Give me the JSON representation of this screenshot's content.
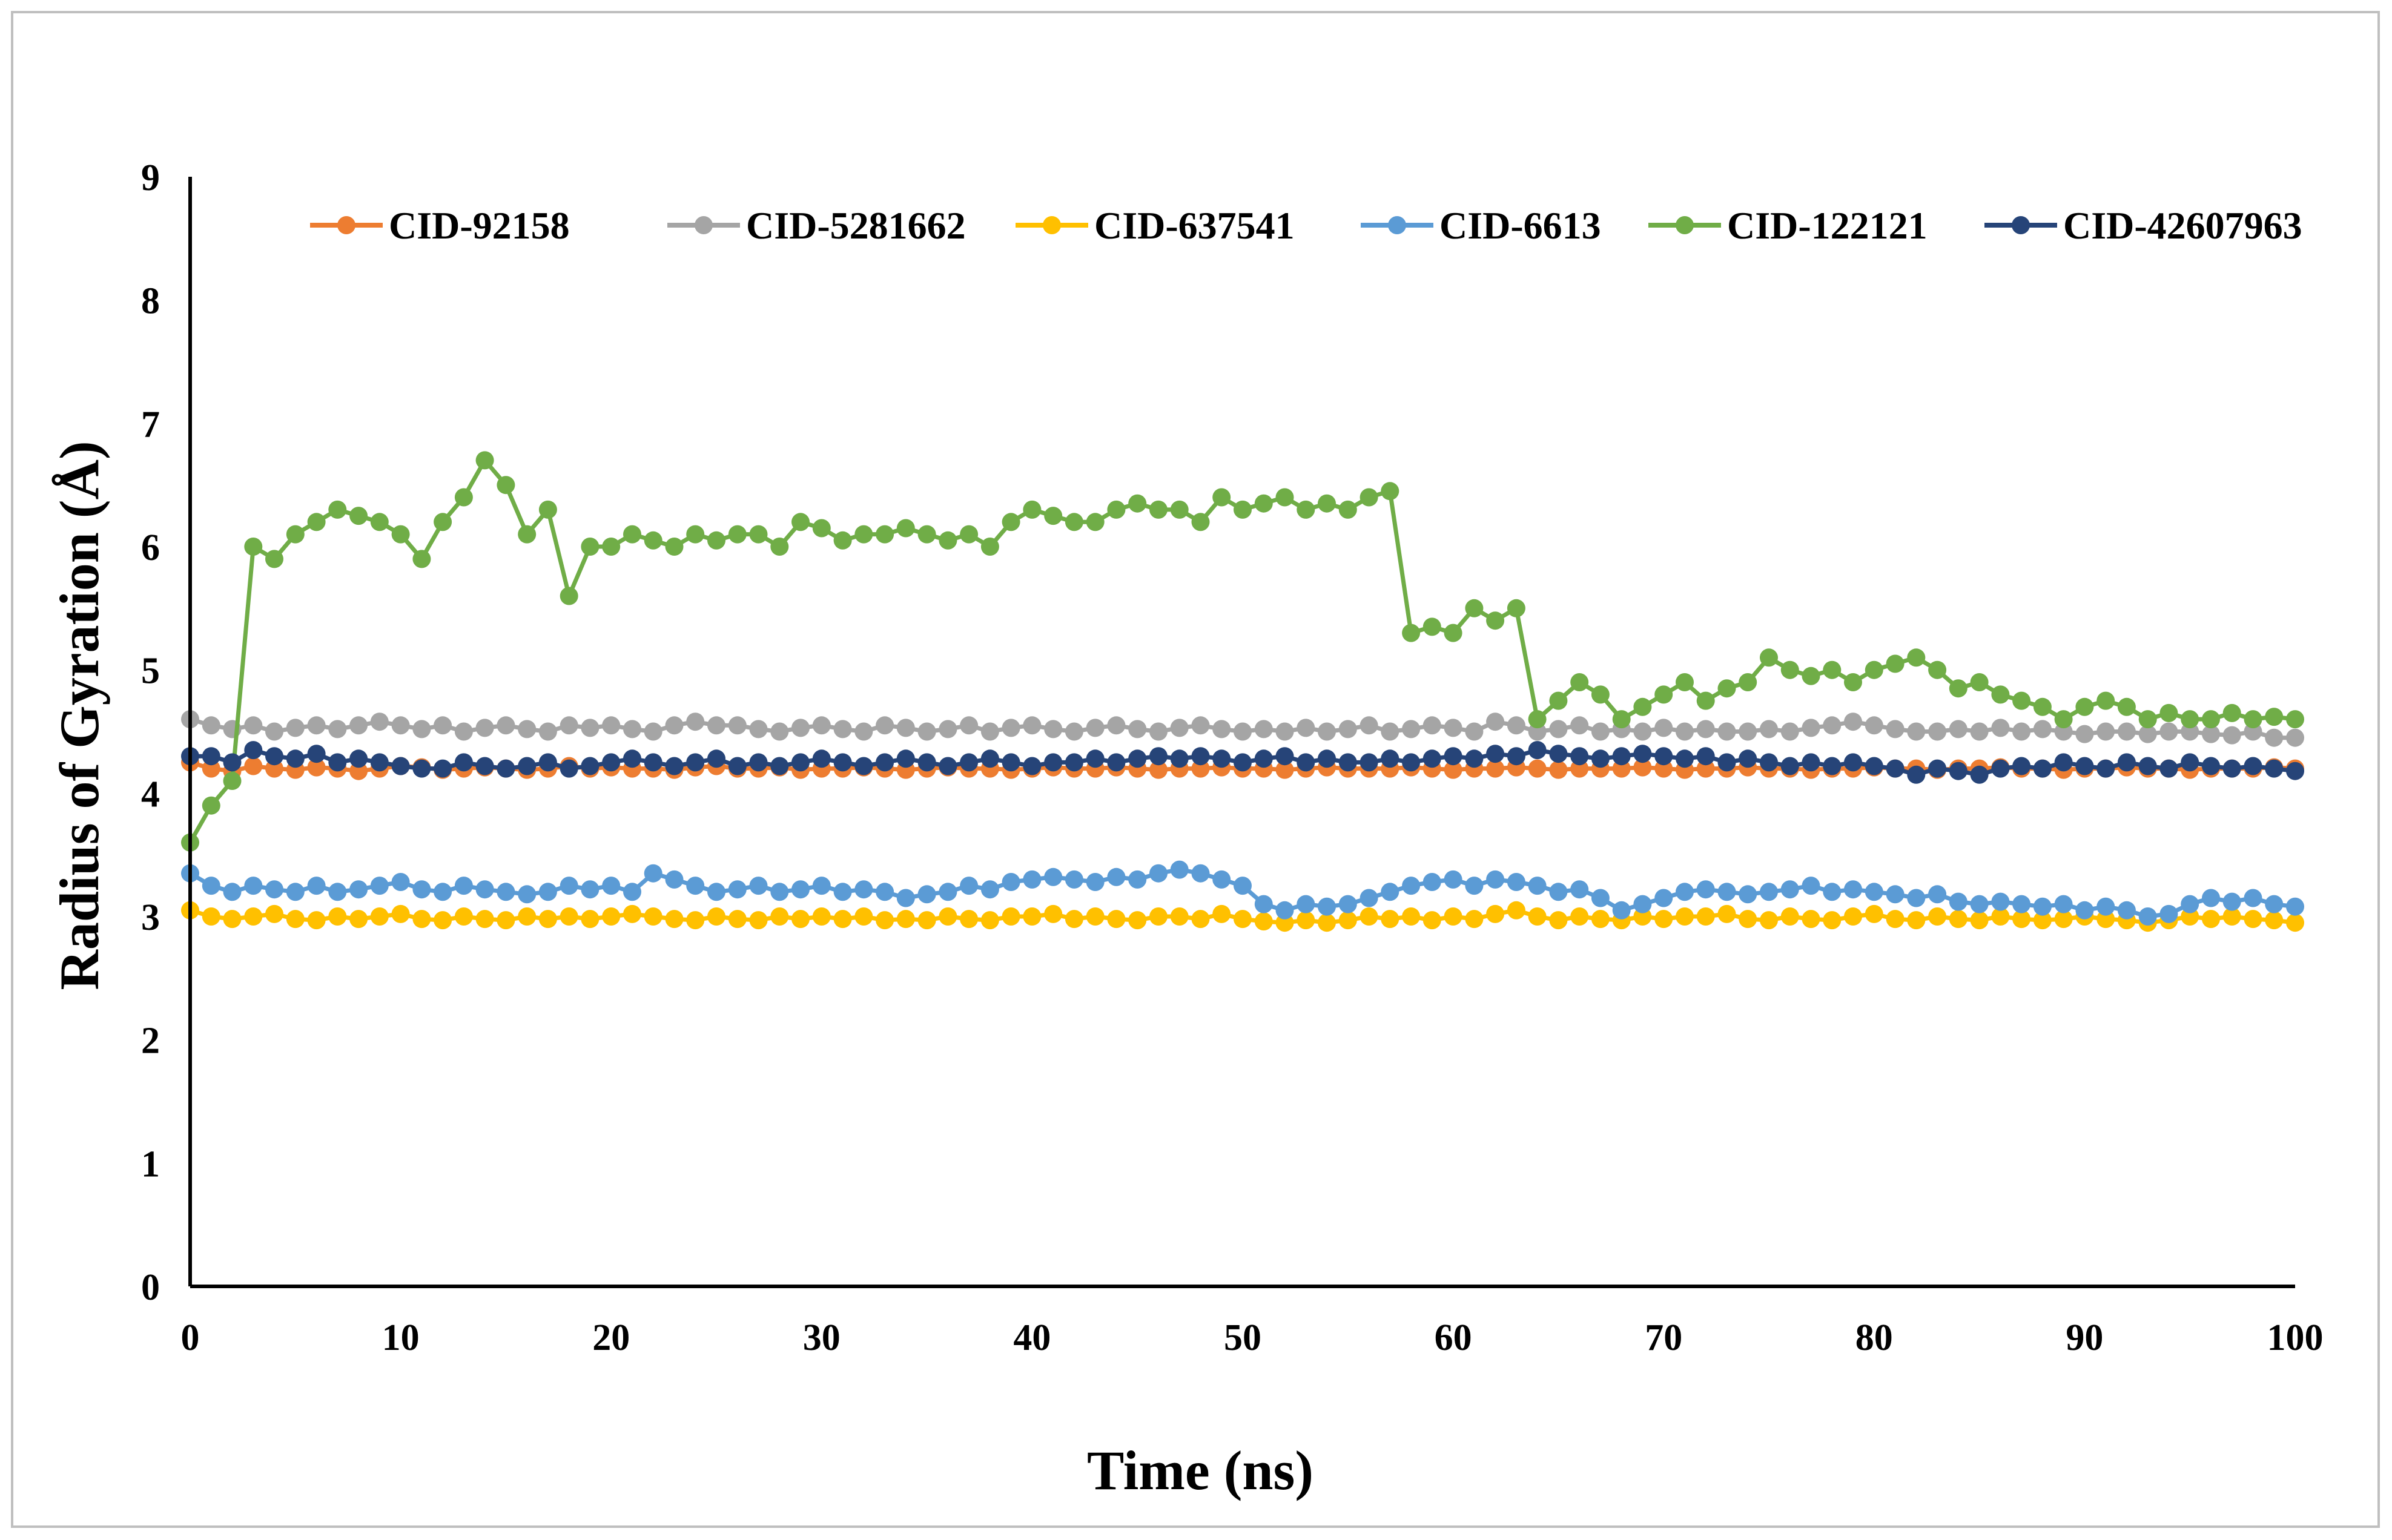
{
  "chart_data": {
    "type": "line",
    "title": "",
    "xlabel": "Time (ns)",
    "ylabel": "Radius of Gyration (Å)",
    "xlim": [
      0,
      100
    ],
    "ylim": [
      0,
      9
    ],
    "xticks": [
      "0",
      "10",
      "20",
      "30",
      "40",
      "50",
      "60",
      "70",
      "80",
      "90",
      "100"
    ],
    "yticks": [
      "0",
      "1",
      "2",
      "3",
      "4",
      "5",
      "6",
      "7",
      "8",
      "9"
    ],
    "grid": false,
    "legend_position": "top",
    "x": [
      0,
      1,
      2,
      3,
      4,
      5,
      6,
      7,
      8,
      9,
      10,
      11,
      12,
      13,
      14,
      15,
      16,
      17,
      18,
      19,
      20,
      21,
      22,
      23,
      24,
      25,
      26,
      27,
      28,
      29,
      30,
      31,
      32,
      33,
      34,
      35,
      36,
      37,
      38,
      39,
      40,
      41,
      42,
      43,
      44,
      45,
      46,
      47,
      48,
      49,
      50,
      51,
      52,
      53,
      54,
      55,
      56,
      57,
      58,
      59,
      60,
      61,
      62,
      63,
      64,
      65,
      66,
      67,
      68,
      69,
      70,
      71,
      72,
      73,
      74,
      75,
      76,
      77,
      78,
      79,
      80,
      81,
      82,
      83,
      84,
      85,
      86,
      87,
      88,
      89,
      90,
      91,
      92,
      93,
      94,
      95,
      96,
      97,
      98,
      99,
      100
    ],
    "series": [
      {
        "name": "CID-92158",
        "color": "#ED7D31",
        "values": [
          4.25,
          4.2,
          4.18,
          4.22,
          4.2,
          4.19,
          4.21,
          4.2,
          4.18,
          4.2,
          4.22,
          4.21,
          4.19,
          4.2,
          4.21,
          4.2,
          4.19,
          4.2,
          4.22,
          4.2,
          4.21,
          4.2,
          4.2,
          4.19,
          4.21,
          4.22,
          4.2,
          4.2,
          4.21,
          4.19,
          4.2,
          4.2,
          4.21,
          4.2,
          4.19,
          4.2,
          4.21,
          4.2,
          4.2,
          4.19,
          4.2,
          4.21,
          4.2,
          4.2,
          4.21,
          4.2,
          4.19,
          4.2,
          4.2,
          4.21,
          4.2,
          4.2,
          4.19,
          4.2,
          4.21,
          4.2,
          4.2,
          4.2,
          4.21,
          4.2,
          4.19,
          4.2,
          4.2,
          4.21,
          4.2,
          4.19,
          4.2,
          4.2,
          4.2,
          4.21,
          4.2,
          4.19,
          4.2,
          4.2,
          4.21,
          4.2,
          4.2,
          4.19,
          4.2,
          4.2,
          4.21,
          4.2,
          4.2,
          4.19,
          4.2,
          4.2,
          4.21,
          4.2,
          4.2,
          4.19,
          4.2,
          4.2,
          4.21,
          4.2,
          4.2,
          4.19,
          4.2,
          4.2,
          4.2,
          4.21,
          4.2
        ]
      },
      {
        "name": "CID-5281662",
        "color": "#A5A5A5",
        "values": [
          4.6,
          4.55,
          4.52,
          4.55,
          4.5,
          4.53,
          4.55,
          4.52,
          4.55,
          4.58,
          4.55,
          4.52,
          4.55,
          4.5,
          4.53,
          4.55,
          4.52,
          4.5,
          4.55,
          4.53,
          4.55,
          4.52,
          4.5,
          4.55,
          4.58,
          4.55,
          4.55,
          4.52,
          4.5,
          4.53,
          4.55,
          4.52,
          4.5,
          4.55,
          4.53,
          4.5,
          4.52,
          4.55,
          4.5,
          4.53,
          4.55,
          4.52,
          4.5,
          4.53,
          4.55,
          4.52,
          4.5,
          4.53,
          4.55,
          4.52,
          4.5,
          4.52,
          4.5,
          4.53,
          4.5,
          4.52,
          4.55,
          4.5,
          4.52,
          4.55,
          4.53,
          4.5,
          4.58,
          4.55,
          4.5,
          4.52,
          4.55,
          4.5,
          4.52,
          4.5,
          4.53,
          4.5,
          4.52,
          4.5,
          4.5,
          4.52,
          4.5,
          4.53,
          4.55,
          4.58,
          4.55,
          4.52,
          4.5,
          4.5,
          4.52,
          4.5,
          4.53,
          4.5,
          4.52,
          4.5,
          4.48,
          4.5,
          4.5,
          4.48,
          4.5,
          4.5,
          4.48,
          4.47,
          4.5,
          4.45,
          4.45
        ]
      },
      {
        "name": "CID-637541",
        "color": "#FFC000",
        "values": [
          3.05,
          3.0,
          2.98,
          3.0,
          3.02,
          2.98,
          2.97,
          3.0,
          2.98,
          3.0,
          3.02,
          2.98,
          2.97,
          3.0,
          2.98,
          2.97,
          3.0,
          2.98,
          3.0,
          2.98,
          3.0,
          3.02,
          3.0,
          2.98,
          2.97,
          3.0,
          2.98,
          2.97,
          3.0,
          2.98,
          3.0,
          2.98,
          3.0,
          2.97,
          2.98,
          2.97,
          3.0,
          2.98,
          2.97,
          3.0,
          3.0,
          3.02,
          2.98,
          3.0,
          2.98,
          2.97,
          3.0,
          3.0,
          2.98,
          3.02,
          2.98,
          2.96,
          2.95,
          2.97,
          2.95,
          2.97,
          3.0,
          2.98,
          3.0,
          2.97,
          3.0,
          2.98,
          3.02,
          3.05,
          3.0,
          2.97,
          3.0,
          2.98,
          2.97,
          3.0,
          2.98,
          3.0,
          3.0,
          3.02,
          2.98,
          2.97,
          3.0,
          2.98,
          2.97,
          3.0,
          3.02,
          2.98,
          2.97,
          3.0,
          2.98,
          2.97,
          3.0,
          2.98,
          2.97,
          2.98,
          3.0,
          2.98,
          2.97,
          2.95,
          2.97,
          3.0,
          2.98,
          3.0,
          2.98,
          2.97,
          2.95
        ]
      },
      {
        "name": "CID-6613",
        "color": "#5B9BD5",
        "values": [
          3.35,
          3.25,
          3.2,
          3.25,
          3.22,
          3.2,
          3.25,
          3.2,
          3.22,
          3.25,
          3.28,
          3.22,
          3.2,
          3.25,
          3.22,
          3.2,
          3.18,
          3.2,
          3.25,
          3.22,
          3.25,
          3.2,
          3.35,
          3.3,
          3.25,
          3.2,
          3.22,
          3.25,
          3.2,
          3.22,
          3.25,
          3.2,
          3.22,
          3.2,
          3.15,
          3.18,
          3.2,
          3.25,
          3.22,
          3.28,
          3.3,
          3.32,
          3.3,
          3.28,
          3.32,
          3.3,
          3.35,
          3.38,
          3.35,
          3.3,
          3.25,
          3.1,
          3.05,
          3.1,
          3.08,
          3.1,
          3.15,
          3.2,
          3.25,
          3.28,
          3.3,
          3.25,
          3.3,
          3.28,
          3.25,
          3.2,
          3.22,
          3.15,
          3.05,
          3.1,
          3.15,
          3.2,
          3.22,
          3.2,
          3.18,
          3.2,
          3.22,
          3.25,
          3.2,
          3.22,
          3.2,
          3.18,
          3.15,
          3.18,
          3.12,
          3.1,
          3.12,
          3.1,
          3.08,
          3.1,
          3.05,
          3.08,
          3.05,
          3.0,
          3.02,
          3.1,
          3.15,
          3.12,
          3.15,
          3.1,
          3.08
        ]
      },
      {
        "name": "CID-122121",
        "color": "#70AD47",
        "values": [
          3.6,
          3.9,
          4.1,
          6.0,
          5.9,
          6.1,
          6.2,
          6.3,
          6.25,
          6.2,
          6.1,
          5.9,
          6.2,
          6.4,
          6.7,
          6.5,
          6.1,
          6.3,
          5.6,
          6.0,
          6.0,
          6.1,
          6.05,
          6.0,
          6.1,
          6.05,
          6.1,
          6.1,
          6.0,
          6.2,
          6.15,
          6.05,
          6.1,
          6.1,
          6.15,
          6.1,
          6.05,
          6.1,
          6.0,
          6.2,
          6.3,
          6.25,
          6.2,
          6.2,
          6.3,
          6.35,
          6.3,
          6.3,
          6.2,
          6.4,
          6.3,
          6.35,
          6.4,
          6.3,
          6.35,
          6.3,
          6.4,
          6.45,
          5.3,
          5.35,
          5.3,
          5.5,
          5.4,
          5.5,
          4.6,
          4.75,
          4.9,
          4.8,
          4.6,
          4.7,
          4.8,
          4.9,
          4.75,
          4.85,
          4.9,
          5.1,
          5.0,
          4.95,
          5.0,
          4.9,
          5.0,
          5.05,
          5.1,
          5.0,
          4.85,
          4.9,
          4.8,
          4.75,
          4.7,
          4.6,
          4.7,
          4.75,
          4.7,
          4.6,
          4.65,
          4.6,
          4.6,
          4.65,
          4.6,
          4.62,
          4.6
        ]
      },
      {
        "name": "CID-42607963",
        "color": "#264478",
        "values": [
          4.3,
          4.3,
          4.25,
          4.35,
          4.3,
          4.28,
          4.32,
          4.25,
          4.28,
          4.25,
          4.22,
          4.2,
          4.2,
          4.25,
          4.22,
          4.2,
          4.22,
          4.25,
          4.2,
          4.22,
          4.25,
          4.28,
          4.25,
          4.22,
          4.25,
          4.28,
          4.22,
          4.25,
          4.22,
          4.25,
          4.28,
          4.25,
          4.22,
          4.25,
          4.28,
          4.25,
          4.22,
          4.25,
          4.28,
          4.25,
          4.22,
          4.25,
          4.25,
          4.28,
          4.25,
          4.28,
          4.3,
          4.28,
          4.3,
          4.28,
          4.25,
          4.28,
          4.3,
          4.25,
          4.28,
          4.25,
          4.25,
          4.28,
          4.25,
          4.28,
          4.3,
          4.28,
          4.32,
          4.3,
          4.35,
          4.32,
          4.3,
          4.28,
          4.3,
          4.32,
          4.3,
          4.28,
          4.3,
          4.25,
          4.28,
          4.25,
          4.22,
          4.25,
          4.22,
          4.25,
          4.22,
          4.2,
          4.15,
          4.2,
          4.18,
          4.15,
          4.2,
          4.22,
          4.2,
          4.25,
          4.22,
          4.2,
          4.25,
          4.22,
          4.2,
          4.25,
          4.22,
          4.2,
          4.22,
          4.2,
          4.18
        ]
      }
    ]
  }
}
